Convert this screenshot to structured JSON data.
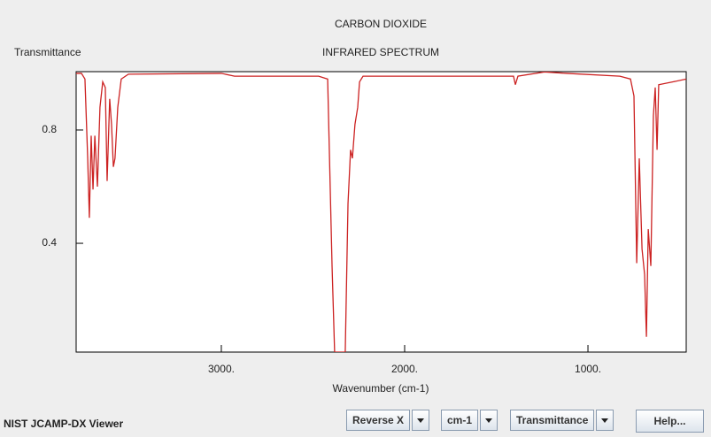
{
  "chart_data": {
    "type": "line",
    "title": "CARBON DIOXIDE",
    "subtitle": "INFRARED SPECTRUM",
    "y_label": "Transmittance",
    "x_label": "Wavenumber (cm-1)",
    "xlim": [
      3792,
      464
    ],
    "ylim": [
      0.016,
      1.006
    ],
    "xticks": [
      {
        "value": 3000,
        "label": "3000."
      },
      {
        "value": 2000,
        "label": "2000."
      },
      {
        "value": 1000,
        "label": "1000."
      }
    ],
    "yticks": [
      0.8,
      0.4
    ],
    "grid": false,
    "series": [
      {
        "name": "CARBON DIOXIDE",
        "color": "#cc2222",
        "x": [
          3792,
          3763,
          3744,
          3729,
          3720,
          3710,
          3700,
          3690,
          3676,
          3662,
          3647,
          3633,
          3623,
          3609,
          3599,
          3589,
          3580,
          3565,
          3546,
          3507,
          3000,
          2928,
          2469,
          2420,
          2396,
          2382,
          2324,
          2309,
          2295,
          2285,
          2271,
          2256,
          2246,
          2227,
          1792,
          1406,
          1396,
          1382,
          1237,
          1116,
          826,
          768,
          749,
          734,
          720,
          705,
          691,
          681,
          671,
          657,
          643,
          633,
          623,
          614,
          536,
          464
        ],
        "values": [
          1.0,
          1.0,
          0.98,
          0.7,
          0.49,
          0.78,
          0.59,
          0.78,
          0.6,
          0.88,
          0.97,
          0.95,
          0.62,
          0.91,
          0.82,
          0.67,
          0.7,
          0.88,
          0.98,
          0.997,
          1.0,
          0.99,
          0.99,
          0.98,
          0.32,
          0.016,
          0.016,
          0.54,
          0.73,
          0.7,
          0.82,
          0.88,
          0.97,
          0.99,
          0.99,
          0.99,
          0.96,
          0.99,
          1.005,
          1.0,
          0.99,
          0.98,
          0.92,
          0.33,
          0.7,
          0.38,
          0.29,
          0.07,
          0.45,
          0.32,
          0.85,
          0.95,
          0.73,
          0.96,
          0.97,
          0.98
        ]
      }
    ]
  },
  "footer": {
    "app_name": "NIST JCAMP-DX Viewer",
    "controls": [
      "Reverse X",
      "cm-1",
      "Transmittance"
    ],
    "help": "Help..."
  }
}
